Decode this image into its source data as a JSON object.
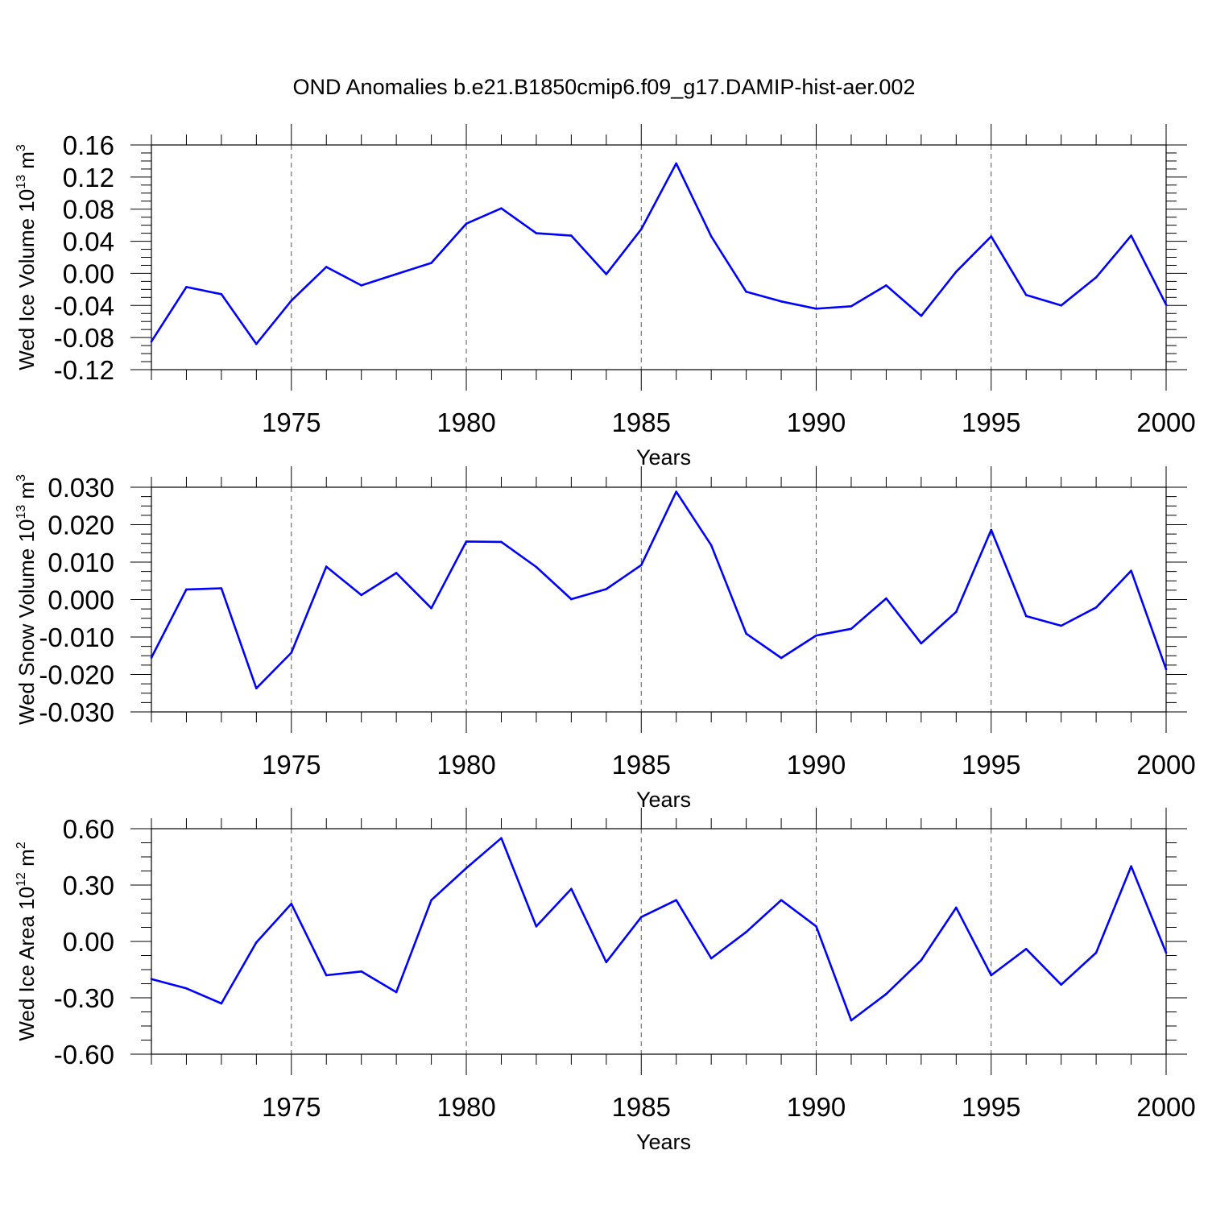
{
  "title": "OND Anomalies b.e21.B1850cmip6.f09_g17.DAMIP-hist-aer.002",
  "chart_data": [
    {
      "type": "line",
      "ylabel": "Wed Ice Volume 10",
      "ylabel_exp": "13",
      "ylabel_unit": "m",
      "ylabel_unit_exp": "3",
      "xlabel": "Years",
      "xlim": [
        1971,
        2000
      ],
      "ylim": [
        -0.12,
        0.16
      ],
      "x_ticks": [
        1975,
        1980,
        1985,
        1990,
        1995,
        2000
      ],
      "y_ticks": [
        "-0.12",
        "-0.08",
        "-0.04",
        "0.00",
        "0.04",
        "0.08",
        "0.12",
        "0.16"
      ],
      "y_tick_values": [
        -0.12,
        -0.08,
        -0.04,
        0.0,
        0.04,
        0.08,
        0.12,
        0.16
      ],
      "color": "#0000ff",
      "x": [
        1971,
        1972,
        1973,
        1974,
        1975,
        1976,
        1977,
        1978,
        1979,
        1980,
        1981,
        1982,
        1983,
        1984,
        1985,
        1986,
        1987,
        1988,
        1989,
        1990,
        1991,
        1992,
        1993,
        1994,
        1995,
        1996,
        1997,
        1998,
        1999,
        2000
      ],
      "values": [
        -0.085,
        -0.017,
        -0.026,
        -0.088,
        -0.034,
        0.008,
        -0.015,
        -0.001,
        0.013,
        0.062,
        0.081,
        0.05,
        0.047,
        -0.001,
        0.055,
        0.137,
        0.046,
        -0.023,
        -0.035,
        -0.044,
        -0.041,
        -0.015,
        -0.053,
        0.002,
        0.046,
        -0.027,
        -0.04,
        -0.005,
        0.047,
        -0.039
      ]
    },
    {
      "type": "line",
      "ylabel": "Wed Snow Volume 10",
      "ylabel_exp": "13",
      "ylabel_unit": "m",
      "ylabel_unit_exp": "3",
      "xlabel": "Years",
      "xlim": [
        1971,
        2000
      ],
      "ylim": [
        -0.03,
        0.03
      ],
      "x_ticks": [
        1975,
        1980,
        1985,
        1990,
        1995,
        2000
      ],
      "y_ticks": [
        "-0.030",
        "-0.020",
        "-0.010",
        "0.000",
        "0.010",
        "0.020",
        "0.030"
      ],
      "y_tick_values": [
        -0.03,
        -0.02,
        -0.01,
        0.0,
        0.01,
        0.02,
        0.03
      ],
      "color": "#0000ff",
      "x": [
        1971,
        1972,
        1973,
        1974,
        1975,
        1976,
        1977,
        1978,
        1979,
        1980,
        1981,
        1982,
        1983,
        1984,
        1985,
        1986,
        1987,
        1988,
        1989,
        1990,
        1991,
        1992,
        1993,
        1994,
        1995,
        1996,
        1997,
        1998,
        1999,
        2000
      ],
      "values": [
        -0.0155,
        0.0027,
        0.003,
        -0.0237,
        -0.0142,
        0.0088,
        0.0012,
        0.0071,
        -0.0023,
        0.0155,
        0.0154,
        0.0087,
        0.0001,
        0.0028,
        0.0092,
        0.0288,
        0.0145,
        -0.0091,
        -0.0156,
        -0.0096,
        -0.0078,
        0.0003,
        -0.0117,
        -0.0033,
        0.0186,
        -0.0044,
        -0.007,
        -0.0021,
        0.0077,
        -0.0186
      ]
    },
    {
      "type": "line",
      "ylabel": "Wed Ice Area 10",
      "ylabel_exp": "12",
      "ylabel_unit": "m",
      "ylabel_unit_exp": "2",
      "xlabel": "Years",
      "xlim": [
        1971,
        2000
      ],
      "ylim": [
        -0.6,
        0.6
      ],
      "x_ticks": [
        1975,
        1980,
        1985,
        1990,
        1995,
        2000
      ],
      "y_ticks": [
        "-0.60",
        "-0.30",
        "0.00",
        "0.30",
        "0.60"
      ],
      "y_tick_values": [
        -0.6,
        -0.3,
        0.0,
        0.3,
        0.6
      ],
      "color": "#0000ff",
      "x": [
        1971,
        1972,
        1973,
        1974,
        1975,
        1976,
        1977,
        1978,
        1979,
        1980,
        1981,
        1982,
        1983,
        1984,
        1985,
        1986,
        1987,
        1988,
        1989,
        1990,
        1991,
        1992,
        1993,
        1994,
        1995,
        1996,
        1997,
        1998,
        1999,
        2000
      ],
      "values": [
        -0.2,
        -0.25,
        -0.33,
        -0.005,
        0.2,
        -0.18,
        -0.16,
        -0.27,
        0.22,
        0.39,
        0.55,
        0.08,
        0.28,
        -0.11,
        0.13,
        0.22,
        -0.09,
        0.05,
        0.22,
        0.08,
        -0.42,
        -0.28,
        -0.1,
        0.18,
        -0.18,
        -0.04,
        -0.23,
        -0.06,
        0.4,
        -0.06
      ]
    }
  ]
}
